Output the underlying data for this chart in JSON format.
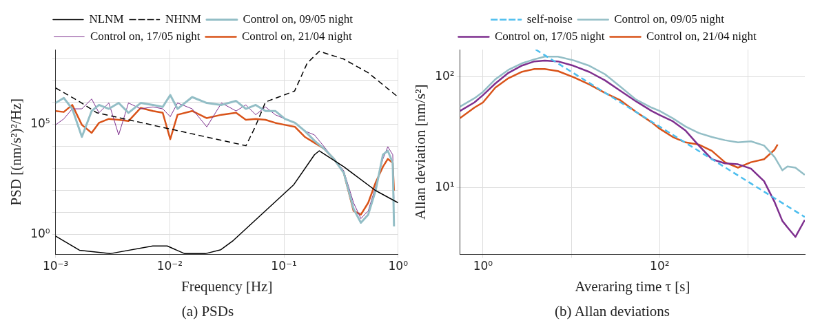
{
  "chart_data": [
    {
      "type": "line",
      "log": "xy",
      "xlabel": "Frequency [Hz]",
      "ylabel": "PSD [(nm/s²)²/Hz]",
      "xlim": [
        0.001,
        1
      ],
      "ylim": [
        0.13,
        240000000
      ],
      "xticks": [
        {
          "value": 0.001,
          "label": "10⁻³"
        },
        {
          "value": 0.01,
          "label": "10⁻²"
        },
        {
          "value": 0.1,
          "label": "10⁻¹"
        },
        {
          "value": 1,
          "label": "10⁰"
        }
      ],
      "yticks": [
        {
          "value": 1,
          "label": "10⁰"
        },
        {
          "value": 10,
          "label": null
        },
        {
          "value": 100,
          "label": null
        },
        {
          "value": 1000,
          "label": null
        },
        {
          "value": 10000,
          "label": null
        },
        {
          "value": 100000,
          "label": "10⁵"
        },
        {
          "value": 1000000,
          "label": null
        },
        {
          "value": 10000000,
          "label": null
        },
        {
          "value": 100000000,
          "label": null
        }
      ],
      "grid": true,
      "legend": "top",
      "annotations": [
        "(a) PSDs"
      ],
      "x": [
        0.001,
        0.00118,
        0.0014,
        0.0017,
        0.00207,
        0.0024,
        0.00293,
        0.00357,
        0.00435,
        0.00557,
        0.00713,
        0.00868,
        0.0101,
        0.0117,
        0.0157,
        0.0211,
        0.0284,
        0.0381,
        0.0464,
        0.0566,
        0.0689,
        0.084,
        0.102,
        0.125,
        0.152,
        0.185,
        0.225,
        0.274,
        0.334,
        0.407,
        0.472,
        0.547,
        0.635,
        0.736,
        0.812,
        0.897,
        0.92
      ],
      "series": [
        {
          "name": "NLNM",
          "color": "#000000",
          "line_style": "solid",
          "x": [
            0.001,
            0.00162,
            0.003,
            0.0071,
            0.0095,
            0.0135,
            0.0205,
            0.028,
            0.036,
            0.122,
            0.185,
            0.204,
            0.334,
            0.635,
            1
          ],
          "values": [
            0.87,
            0.2,
            0.14,
            0.31,
            0.31,
            0.14,
            0.14,
            0.21,
            0.55,
            185,
            4170,
            6300,
            1200,
            100,
            28
          ]
        },
        {
          "name": "NHNM",
          "color": "#000000",
          "line_style": "dashed",
          "x": [
            0.001,
            0.0016,
            0.0023,
            0.0465,
            0.056,
            0.069,
            0.124,
            0.16,
            0.204,
            0.334,
            0.55,
            1
          ],
          "values": [
            4400000,
            1100000,
            330000,
            10700,
            76000,
            1020000,
            3200000,
            59000000,
            200000000,
            89000000,
            21000000,
            1700000
          ]
        },
        {
          "name": "Control on, 09/05 night",
          "color": "#93bec6",
          "line_style": "solid",
          "values": [
            920000,
            1550000,
            500000,
            27000,
            400000,
            750000,
            500000,
            920000,
            330000,
            920000,
            750000,
            610000,
            2100000,
            500000,
            1700000,
            920000,
            750000,
            1140000,
            500000,
            750000,
            400000,
            400000,
            175000,
            116000,
            50000,
            18000,
            7800,
            2700,
            640,
            15,
            3.5,
            8.2,
            99,
            4200,
            6300,
            1800,
            2.4
          ]
        },
        {
          "name": "Control on, 17/05 night",
          "color": "#7e2f8e",
          "line_style": "solid",
          "values": [
            94000,
            175000,
            500000,
            500000,
            1400000,
            330000,
            920000,
            33000,
            920000,
            500000,
            610000,
            500000,
            220000,
            920000,
            500000,
            76000,
            920000,
            400000,
            750000,
            270000,
            610000,
            270000,
            175000,
            116000,
            50000,
            33000,
            9600,
            2700,
            790,
            28,
            5.4,
            12,
            150,
            2700,
            9600,
            4200,
            43
          ]
        },
        {
          "name": "Control on, 21/04 night",
          "color": "#d95319",
          "line_style": "solid",
          "values": [
            400000,
            360000,
            750000,
            94000,
            41000,
            116000,
            175000,
            160000,
            140000,
            550000,
            400000,
            330000,
            21000,
            270000,
            400000,
            190000,
            270000,
            330000,
            160000,
            175000,
            160000,
            116000,
            94000,
            76000,
            27000,
            14500,
            7800,
            2700,
            640,
            12,
            8.2,
            28,
            230,
            1200,
            2700,
            1800,
            99
          ]
        }
      ]
    },
    {
      "type": "line",
      "log": "xy",
      "xlabel": "Averaring time τ [s]",
      "ylabel": "Allan deviation [nm/s²]",
      "xlim": [
        0.55,
        4400
      ],
      "ylim": [
        2.5,
        175
      ],
      "xticks": [
        {
          "value": 1,
          "label": "10⁰"
        },
        {
          "value": 10,
          "label": null
        },
        {
          "value": 100,
          "label": "10²"
        },
        {
          "value": 1000,
          "label": null
        }
      ],
      "yticks": [
        {
          "value": 10,
          "label": "10¹"
        },
        {
          "value": 100,
          "label": "10²"
        }
      ],
      "grid": true,
      "legend": "top",
      "annotations": [
        "(b) Allan deviations"
      ],
      "x": [
        0.55,
        0.8,
        1,
        1.38,
        1.94,
        2.72,
        3.82,
        5.0,
        7.05,
        10.6,
        16,
        24,
        36,
        54,
        81,
        100,
        141,
        197,
        277,
        390,
        548,
        770,
        1080,
        1520,
        2000,
        2450,
        2800,
        3440,
        4390
      ],
      "series": [
        {
          "name": "self-noise",
          "color": "#4dbeee",
          "line_style": "dashed",
          "x": [
            3.95,
            4390
          ],
          "values": [
            175,
            5.43
          ]
        },
        {
          "name": "Control on, 09/05 night",
          "color": "#93bec6",
          "line_style": "solid",
          "values": [
            53.6,
            63.8,
            72.7,
            94.5,
            115,
            131,
            143,
            151,
            151,
            140,
            125,
            105,
            81,
            62,
            52.5,
            49,
            42,
            35.4,
            31,
            28.5,
            26.7,
            25.5,
            26.1,
            23.9,
            18.8,
            14.3,
            15.5,
            15.1,
            13
          ]
        },
        {
          "name": "Control on, 17/05 night",
          "color": "#7e2f8e",
          "line_style": "solid",
          "values": [
            49,
            58.5,
            68,
            86.6,
            108,
            125,
            137,
            139,
            137,
            125,
            110,
            92.5,
            74.3,
            59.8,
            49,
            45,
            39.5,
            32.5,
            23.9,
            18,
            16.5,
            16.2,
            14.8,
            11.4,
            7.4,
            5.0,
            4.37,
            3.59,
            5.1
          ]
        },
        {
          "name": "Control on, 21/04 night",
          "color": "#d95319",
          "line_style": "solid",
          "x": [
            0.55,
            0.8,
            1,
            1.38,
            1.94,
            2.72,
            3.82,
            5.0,
            7.05,
            10.6,
            16,
            24,
            36,
            54,
            81,
            100,
            141,
            197,
            277,
            390,
            548,
            770,
            1080,
            1520,
            2000,
            2165
          ],
          "values": [
            42.2,
            52.5,
            58.5,
            79.4,
            96.6,
            110,
            117,
            117,
            112,
            98.7,
            84.8,
            71.2,
            61.1,
            48,
            38.7,
            33.9,
            28.5,
            25.5,
            24.4,
            21.4,
            16.9,
            15.1,
            16.9,
            18,
            21.9,
            24.4
          ]
        }
      ]
    }
  ]
}
